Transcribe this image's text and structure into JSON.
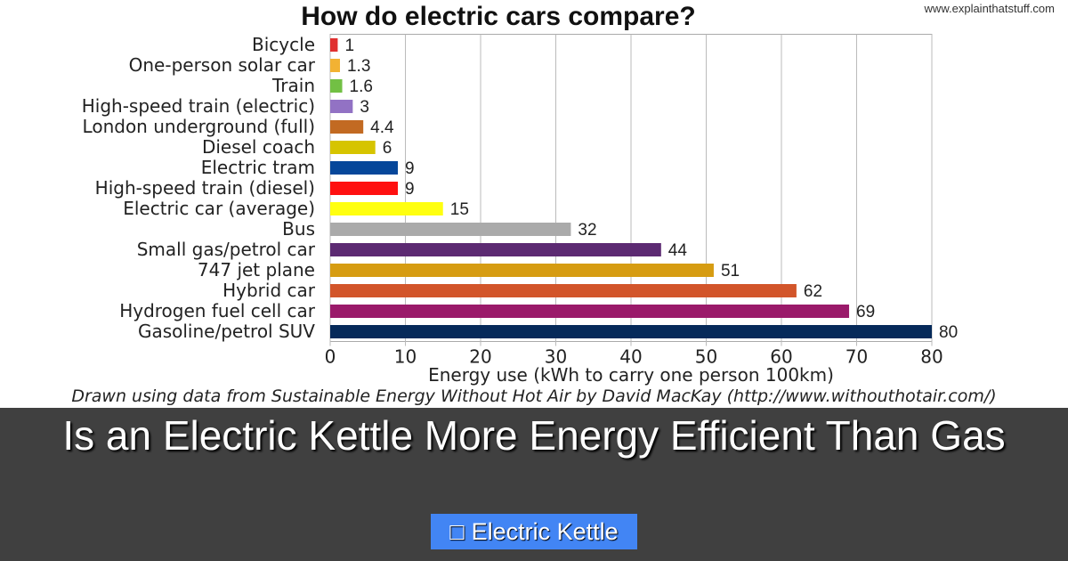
{
  "chart_data": {
    "type": "bar",
    "orientation": "horizontal",
    "title": "How do electric cars compare?",
    "source_watermark": "www.explainthatstuff.com",
    "xlabel": "Energy use (kWh to carry one person 100km)",
    "credit": "Drawn using data from Sustainable Energy Without Hot Air by David MacKay (http://www.withouthotair.com/)",
    "xlim": [
      0,
      80
    ],
    "xticks": [
      0,
      10,
      20,
      30,
      40,
      50,
      60,
      70,
      80
    ],
    "grid": true,
    "categories": [
      "Bicycle",
      "One-person solar car",
      "Train",
      "High-speed train (electric)",
      "London underground (full)",
      "Diesel coach",
      "Electric tram",
      "High-speed train (diesel)",
      "Electric car (average)",
      "Bus",
      "Small gas/petrol car",
      "747 jet plane",
      "Hybrid car",
      "Hydrogen fuel cell car",
      "Gasoline/petrol SUV"
    ],
    "values": [
      1,
      1.3,
      1.6,
      3,
      4.4,
      6,
      9,
      9,
      15,
      32,
      44,
      51,
      62,
      69,
      80
    ],
    "colors": [
      "#e03030",
      "#f2b233",
      "#72c044",
      "#9272c4",
      "#c26a22",
      "#d6c400",
      "#06479a",
      "#ff1010",
      "#ffff10",
      "#aaaaaa",
      "#5c2a72",
      "#d69c12",
      "#d2552a",
      "#9a1a6a",
      "#062a5a"
    ]
  },
  "overlay": {
    "headline": "Is an Electric Kettle More Energy Efficient Than Gas",
    "tag_icon": "tag-icon",
    "tag_label": "Electric Kettle",
    "tag_color": "#4285f4"
  }
}
